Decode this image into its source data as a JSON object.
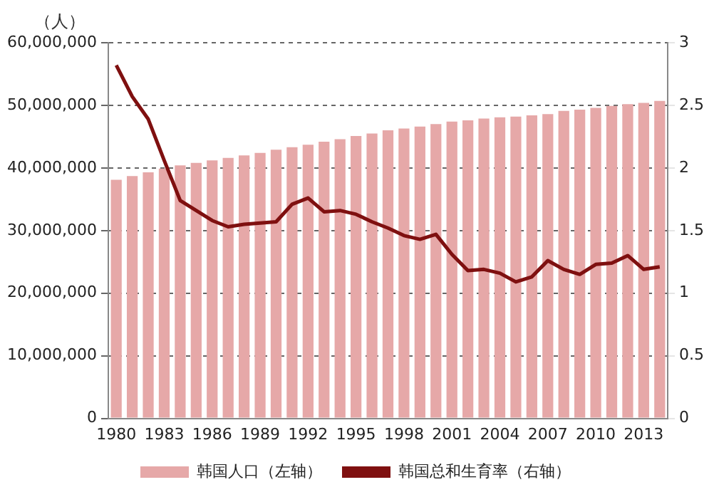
{
  "chart_data": {
    "type": "bar",
    "ylabel": "（人）",
    "categories": [
      "1980",
      null,
      null,
      "1983",
      null,
      null,
      "1986",
      null,
      null,
      "1989",
      null,
      null,
      "1992",
      null,
      null,
      "1995",
      null,
      null,
      "1998",
      null,
      null,
      "2001",
      null,
      null,
      "2004",
      null,
      null,
      "2007",
      null,
      null,
      "2010",
      null,
      null,
      "2013",
      null
    ],
    "series": [
      {
        "name": "韩国人口（左轴）",
        "color": "#e6a8a8",
        "values": [
          38100000,
          38700000,
          39300000,
          39900000,
          40400000,
          40800000,
          41200000,
          41600000,
          42000000,
          42400000,
          42900000,
          43300000,
          43700000,
          44200000,
          44600000,
          45100000,
          45500000,
          46000000,
          46300000,
          46600000,
          47000000,
          47400000,
          47600000,
          47900000,
          48100000,
          48200000,
          48400000,
          48600000,
          49100000,
          49300000,
          49600000,
          49900000,
          50200000,
          50400000,
          50700000
        ]
      },
      {
        "name": "韩国总和生育率（右轴）",
        "type": "line",
        "axis": "y2",
        "color": "#7f1010",
        "values": [
          2.82,
          2.57,
          2.39,
          2.06,
          1.74,
          1.66,
          1.58,
          1.53,
          1.55,
          1.56,
          1.57,
          1.71,
          1.76,
          1.65,
          1.66,
          1.63,
          1.57,
          1.52,
          1.46,
          1.43,
          1.47,
          1.31,
          1.18,
          1.19,
          1.16,
          1.09,
          1.13,
          1.26,
          1.19,
          1.15,
          1.23,
          1.24,
          1.3,
          1.19,
          1.21
        ]
      }
    ],
    "ylim": [
      0,
      60000000
    ],
    "yticks": [
      0,
      {
        "value": 10000000,
        "label": "10,000,000"
      },
      {
        "value": 20000000,
        "label": "20,000,000"
      },
      {
        "value": 30000000,
        "label": "30,000,000"
      },
      {
        "value": 40000000,
        "label": "40,000,000"
      },
      {
        "value": 50000000,
        "label": "50,000,000"
      },
      {
        "value": 60000000,
        "label": "60,000,000"
      }
    ],
    "y2lim": [
      0,
      3
    ],
    "y2ticks": [
      0,
      0.5,
      1,
      1.5,
      2,
      2.5,
      3
    ],
    "grid": "y",
    "legend": "bottom",
    "marker": "none",
    "line_style": "solid"
  }
}
